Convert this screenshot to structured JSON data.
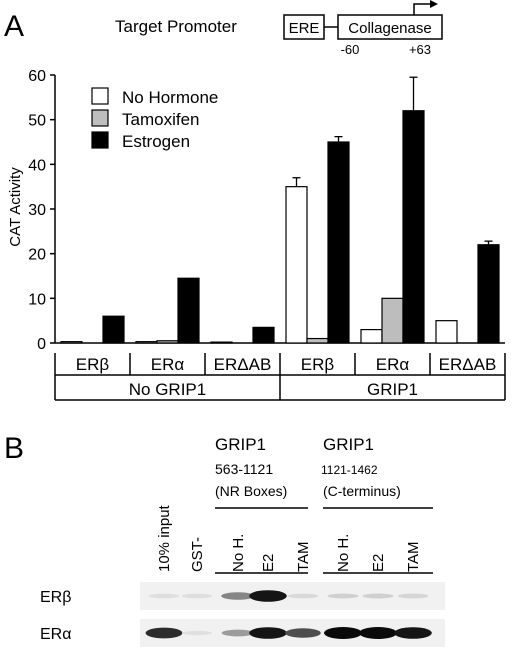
{
  "panel_a": {
    "label": "A",
    "target_promoter_label": "Target Promoter",
    "ere_label": "ERE",
    "collagenase_label": "Collagenase",
    "pos_start": "-60",
    "pos_end": "+63"
  },
  "chart_data": {
    "type": "bar",
    "ylabel": "CAT Activity",
    "ylim": [
      0,
      60
    ],
    "yticks": [
      "0",
      "10",
      "20",
      "30",
      "40",
      "50",
      "60"
    ],
    "categories": [
      "ERβ",
      "ERα",
      "ERΔAB",
      "ERβ",
      "ERα",
      "ERΔAB"
    ],
    "groups": [
      {
        "label": "No GRIP1",
        "categories": [
          0,
          1,
          2
        ]
      },
      {
        "label": "GRIP1",
        "categories": [
          3,
          4,
          5
        ]
      }
    ],
    "series": [
      {
        "name": "No Hormone",
        "color": "#ffffff",
        "values": [
          0.3,
          0.3,
          0.2,
          35,
          3,
          5
        ],
        "errors": [
          0,
          0,
          0,
          2,
          0,
          0
        ]
      },
      {
        "name": "Tamoxifen",
        "color": "#bdbdbd",
        "values": [
          0,
          0.5,
          0,
          1,
          10,
          0
        ],
        "errors": [
          0,
          0,
          0,
          0,
          0,
          0
        ]
      },
      {
        "name": "Estrogen",
        "color": "#000000",
        "values": [
          6,
          14.5,
          3.5,
          45,
          52,
          22
        ],
        "errors": [
          0,
          0,
          0,
          1.2,
          7.5,
          0.8
        ]
      }
    ],
    "legend_position": "top-left"
  },
  "panel_b": {
    "label": "B",
    "grip1_a": {
      "name": "GRIP1",
      "range": "563-1121",
      "desc": "(NR Boxes)"
    },
    "grip1_b": {
      "name": "GRIP1",
      "range": "1121-1462",
      "desc": "(C-terminus)"
    },
    "lanes": [
      "10% input",
      "GST-",
      "No H.",
      "E2",
      "TAM",
      "No H.",
      "E2",
      "TAM"
    ],
    "blot_rows": [
      {
        "label": "ERβ",
        "intensities": [
          0.06,
          0.06,
          0.45,
          0.95,
          0.08,
          0.12,
          0.12,
          0.1
        ]
      },
      {
        "label": "ERα",
        "intensities": [
          0.85,
          0.05,
          0.35,
          0.95,
          0.7,
          1.0,
          1.0,
          0.95
        ]
      }
    ]
  }
}
